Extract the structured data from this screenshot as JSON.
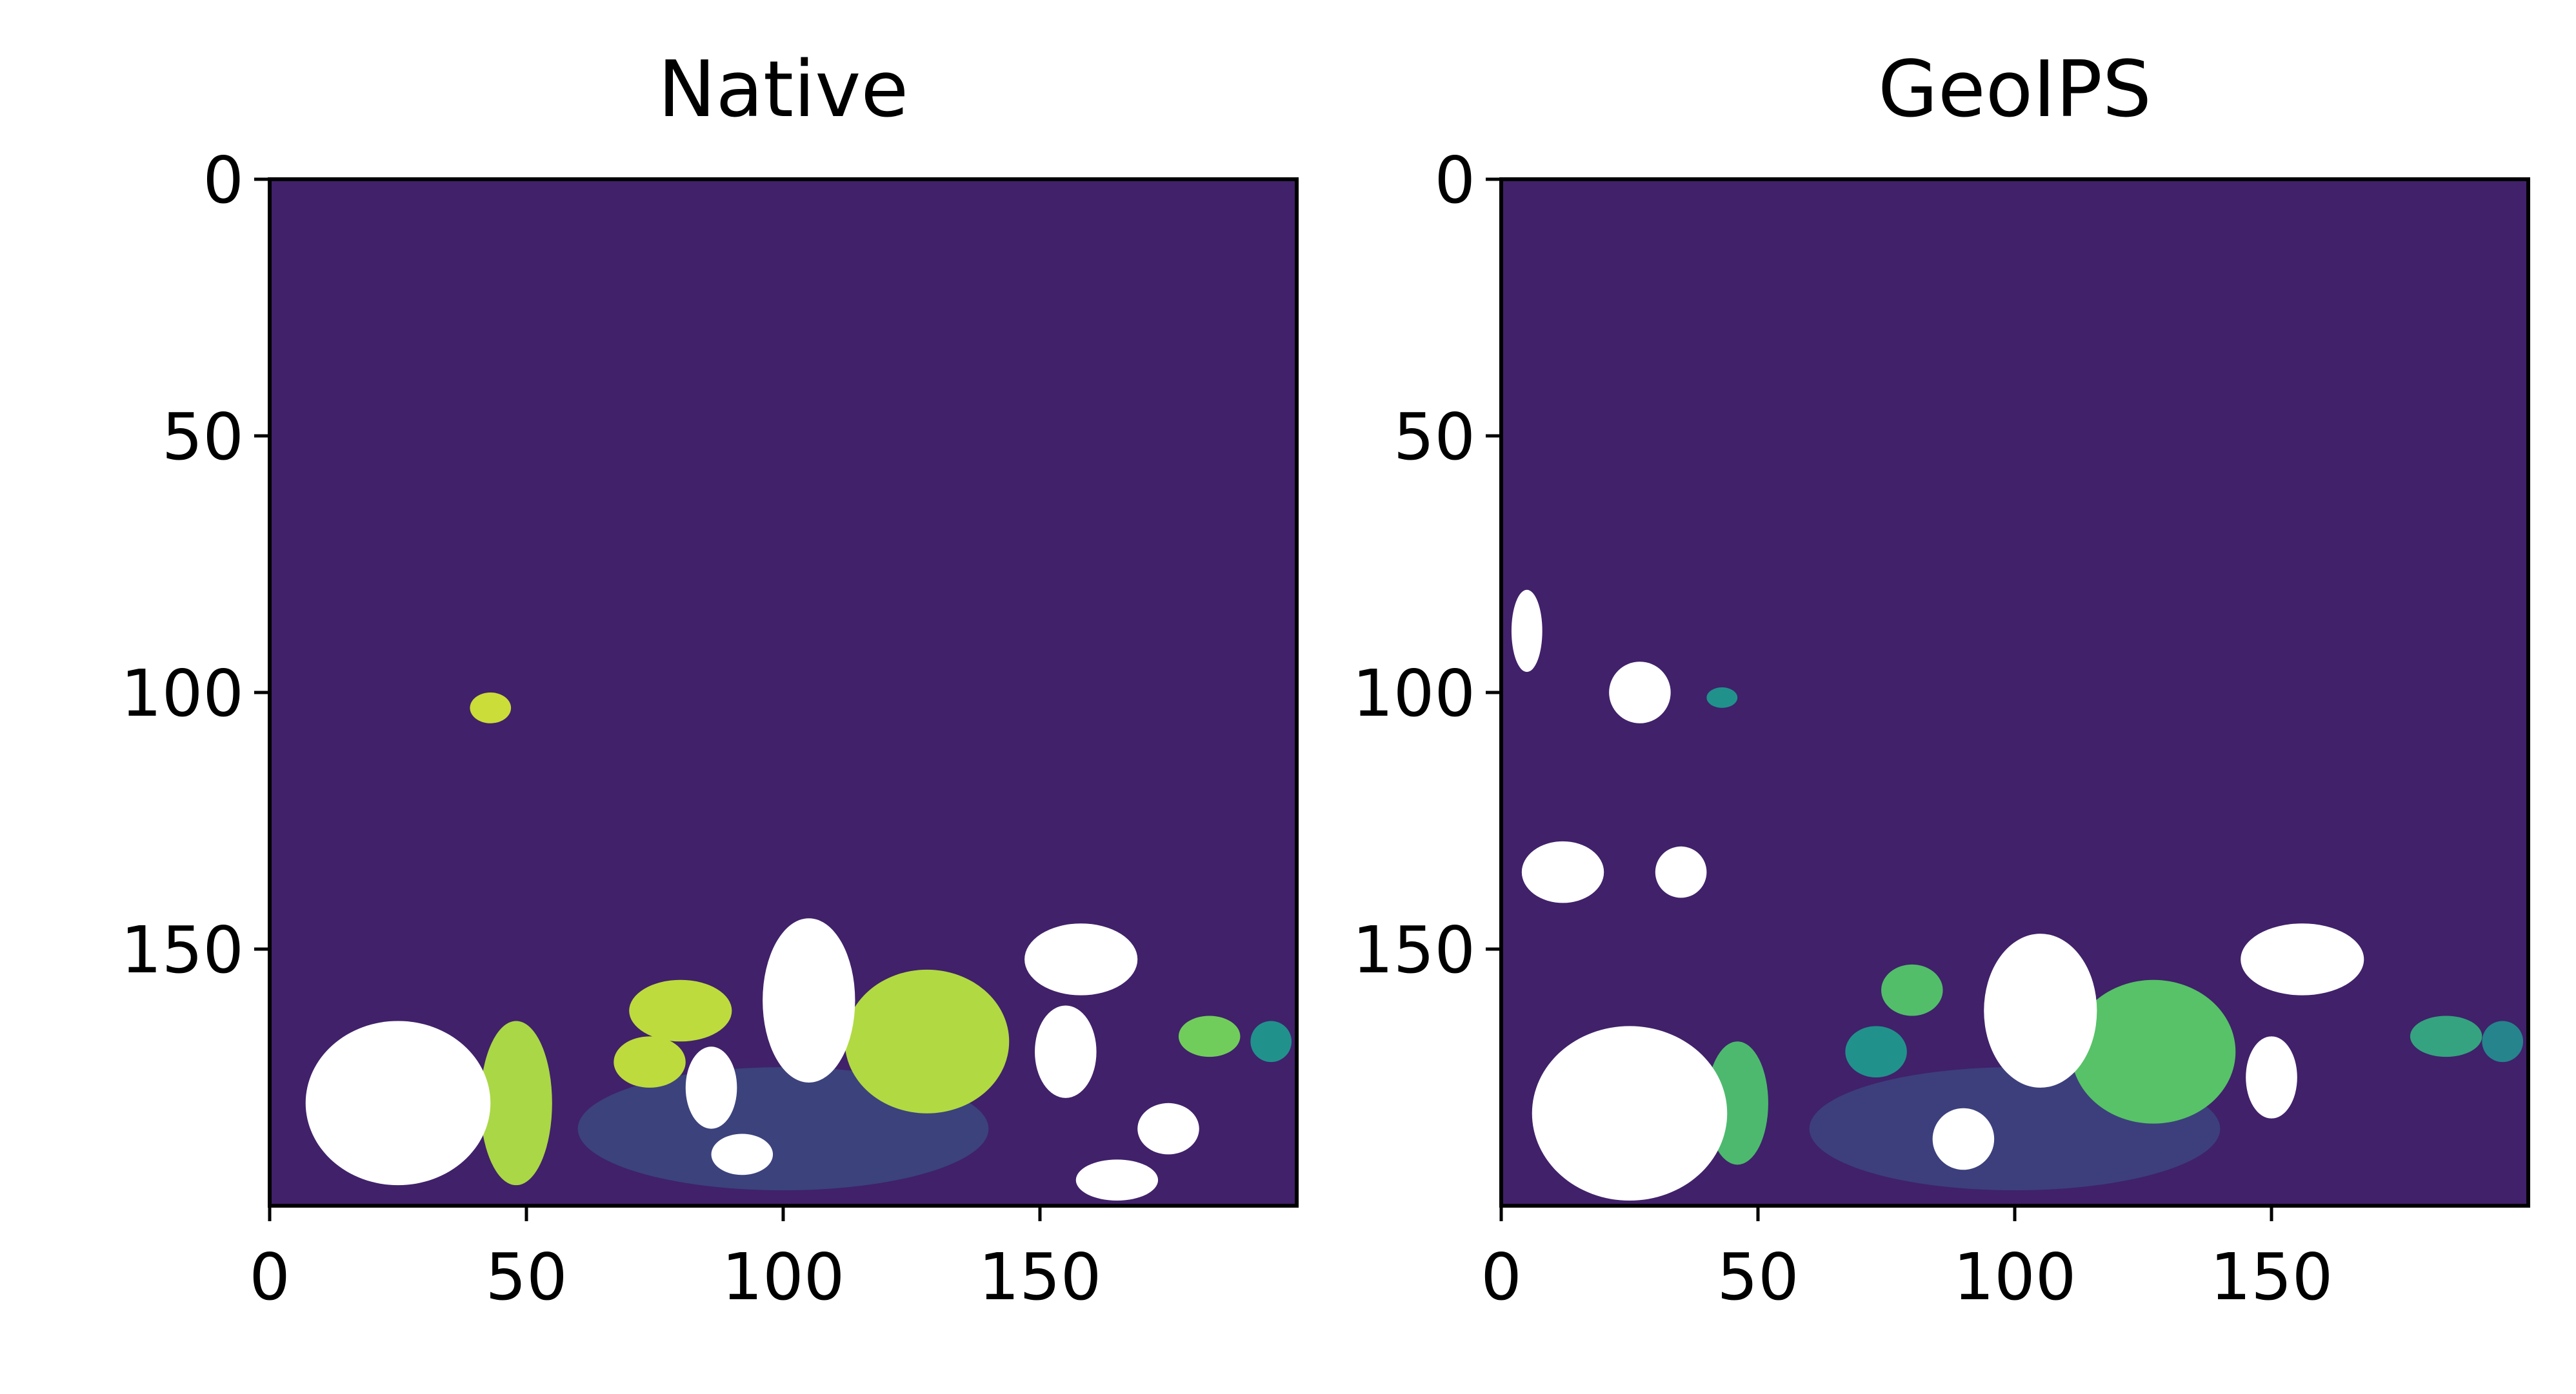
{
  "chart_data": [
    {
      "type": "heatmap",
      "title": "Native",
      "xlabel": "",
      "ylabel": "",
      "xlim": [
        0,
        200
      ],
      "ylim": [
        200,
        0
      ],
      "xticks": [
        0,
        50,
        100,
        150
      ],
      "yticks": [
        0,
        50,
        100,
        150
      ],
      "xtick_labels": [
        "0",
        "50",
        "100",
        "150"
      ],
      "ytick_labels": [
        "0",
        "50",
        "100",
        "150"
      ],
      "colormap": "viridis",
      "grid": false,
      "background_level": 0.1,
      "mask_color": "#ffffff",
      "hot_regions": [
        {
          "cx": 128,
          "cy": 168,
          "rx": 16,
          "ry": 14,
          "value": 0.88
        },
        {
          "cx": 48,
          "cy": 180,
          "rx": 7,
          "ry": 16,
          "value": 0.87
        },
        {
          "cx": 80,
          "cy": 162,
          "rx": 10,
          "ry": 6,
          "value": 0.9
        },
        {
          "cx": 74,
          "cy": 172,
          "rx": 7,
          "ry": 5,
          "value": 0.9
        },
        {
          "cx": 183,
          "cy": 167,
          "rx": 6,
          "ry": 4,
          "value": 0.78
        },
        {
          "cx": 43,
          "cy": 103,
          "rx": 4,
          "ry": 3,
          "value": 0.92
        },
        {
          "cx": 195,
          "cy": 168,
          "rx": 4,
          "ry": 4,
          "value": 0.5
        },
        {
          "cx": 100,
          "cy": 185,
          "rx": 40,
          "ry": 12,
          "value": 0.3
        }
      ],
      "masked_regions": [
        {
          "cx": 25,
          "cy": 180,
          "rx": 18,
          "ry": 16
        },
        {
          "cx": 105,
          "cy": 160,
          "rx": 9,
          "ry": 16
        },
        {
          "cx": 86,
          "cy": 177,
          "rx": 5,
          "ry": 8
        },
        {
          "cx": 158,
          "cy": 152,
          "rx": 11,
          "ry": 7
        },
        {
          "cx": 155,
          "cy": 170,
          "rx": 6,
          "ry": 9
        },
        {
          "cx": 92,
          "cy": 190,
          "rx": 6,
          "ry": 4
        },
        {
          "cx": 175,
          "cy": 185,
          "rx": 6,
          "ry": 5
        },
        {
          "cx": 165,
          "cy": 195,
          "rx": 8,
          "ry": 4
        }
      ]
    },
    {
      "type": "heatmap",
      "title": "GeoIPS",
      "xlabel": "",
      "ylabel": "",
      "xlim": [
        0,
        200
      ],
      "ylim": [
        200,
        0
      ],
      "xticks": [
        0,
        50,
        100,
        150
      ],
      "yticks": [
        0,
        50,
        100,
        150
      ],
      "xtick_labels": [
        "0",
        "50",
        "100",
        "150"
      ],
      "ytick_labels": [
        "0",
        "50",
        "100",
        "150"
      ],
      "colormap": "viridis",
      "grid": false,
      "background_level": 0.1,
      "mask_color": "#ffffff",
      "hot_regions": [
        {
          "cx": 127,
          "cy": 170,
          "rx": 16,
          "ry": 14,
          "value": 0.72
        },
        {
          "cx": 46,
          "cy": 180,
          "rx": 6,
          "ry": 12,
          "value": 0.68
        },
        {
          "cx": 80,
          "cy": 158,
          "rx": 6,
          "ry": 5,
          "value": 0.7
        },
        {
          "cx": 73,
          "cy": 170,
          "rx": 6,
          "ry": 5,
          "value": 0.5
        },
        {
          "cx": 184,
          "cy": 167,
          "rx": 7,
          "ry": 4,
          "value": 0.58
        },
        {
          "cx": 43,
          "cy": 101,
          "rx": 3,
          "ry": 2,
          "value": 0.5
        },
        {
          "cx": 195,
          "cy": 168,
          "rx": 4,
          "ry": 4,
          "value": 0.45
        },
        {
          "cx": 100,
          "cy": 185,
          "rx": 40,
          "ry": 12,
          "value": 0.28
        }
      ],
      "masked_regions": [
        {
          "cx": 25,
          "cy": 182,
          "rx": 19,
          "ry": 17
        },
        {
          "cx": 105,
          "cy": 162,
          "rx": 11,
          "ry": 15
        },
        {
          "cx": 12,
          "cy": 135,
          "rx": 8,
          "ry": 6
        },
        {
          "cx": 27,
          "cy": 100,
          "rx": 6,
          "ry": 6
        },
        {
          "cx": 35,
          "cy": 135,
          "rx": 5,
          "ry": 5
        },
        {
          "cx": 156,
          "cy": 152,
          "rx": 12,
          "ry": 7
        },
        {
          "cx": 150,
          "cy": 175,
          "rx": 5,
          "ry": 8
        },
        {
          "cx": 90,
          "cy": 187,
          "rx": 6,
          "ry": 6
        },
        {
          "cx": 5,
          "cy": 88,
          "rx": 3,
          "ry": 8
        }
      ]
    }
  ]
}
